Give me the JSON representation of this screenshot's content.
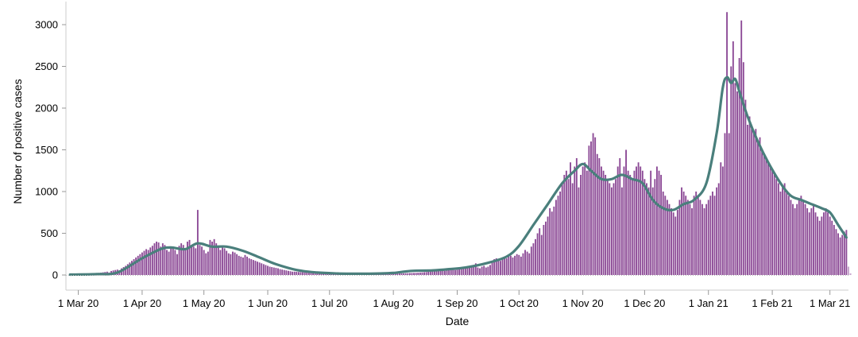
{
  "chart_data": {
    "type": "bar",
    "xlabel": "Date",
    "ylabel": "Number of positive cases",
    "ylim": [
      0,
      3200
    ],
    "yticks": [
      0,
      500,
      1000,
      1500,
      2000,
      2500,
      3000
    ],
    "x_range": [
      "2020-02-24",
      "2021-03-10"
    ],
    "xticks": [
      {
        "date": "2020-03-01",
        "label": "1 Mar 20"
      },
      {
        "date": "2020-04-01",
        "label": "1 Apr 20"
      },
      {
        "date": "2020-05-01",
        "label": "1 May 20"
      },
      {
        "date": "2020-06-01",
        "label": "1 Jun 20"
      },
      {
        "date": "2020-07-01",
        "label": "1 Jul 20"
      },
      {
        "date": "2020-08-01",
        "label": "1 Aug 20"
      },
      {
        "date": "2020-09-01",
        "label": "1 Sep 20"
      },
      {
        "date": "2020-10-01",
        "label": "1 Oct 20"
      },
      {
        "date": "2020-11-01",
        "label": "1 Nov 20"
      },
      {
        "date": "2020-12-01",
        "label": "1 Dec 20"
      },
      {
        "date": "2021-01-01",
        "label": "1 Jan 21"
      },
      {
        "date": "2021-02-01",
        "label": "1 Feb 21"
      },
      {
        "date": "2021-03-01",
        "label": "1 Mar 21"
      }
    ],
    "grid": false,
    "colors": {
      "bars": "#8c4a96",
      "incomplete_bars": "#c7a3cc",
      "trend_line": "#4a7f7c"
    },
    "series": [
      {
        "type": "bar",
        "start_date": "2020-03-01",
        "values": [
          5,
          4,
          6,
          8,
          10,
          12,
          15,
          17,
          19,
          22,
          25,
          28,
          32,
          36,
          40,
          30,
          48,
          55,
          60,
          65,
          58,
          80,
          95,
          110,
          130,
          150,
          170,
          190,
          210,
          230,
          250,
          270,
          290,
          310,
          300,
          330,
          350,
          380,
          400,
          390,
          340,
          380,
          360,
          300,
          280,
          330,
          320,
          300,
          250,
          350,
          380,
          360,
          320,
          400,
          420,
          360,
          340,
          320,
          780,
          360,
          340,
          300,
          260,
          280,
          420,
          400,
          430,
          380,
          350,
          300,
          340,
          320,
          290,
          260,
          250,
          280,
          270,
          250,
          230,
          220,
          210,
          240,
          220,
          200,
          190,
          180,
          170,
          160,
          150,
          140,
          130,
          120,
          110,
          100,
          95,
          90,
          85,
          80,
          70,
          65,
          60,
          55,
          50,
          45,
          40,
          40,
          38,
          36,
          35,
          34,
          33,
          32,
          31,
          30,
          30,
          29,
          28,
          28,
          27,
          26,
          26,
          25,
          25,
          24,
          24,
          23,
          23,
          22,
          22,
          21,
          21,
          20,
          20,
          20,
          19,
          19,
          18,
          18,
          18,
          17,
          17,
          17,
          16,
          16,
          16,
          16,
          16,
          15,
          15,
          15,
          15,
          15,
          16,
          16,
          17,
          17,
          18,
          19,
          20,
          21,
          22,
          23,
          24,
          25,
          26,
          28,
          30,
          32,
          34,
          36,
          40,
          45,
          50,
          60,
          70,
          65,
          55,
          60,
          50,
          55,
          60,
          65,
          70,
          60,
          65,
          70,
          75,
          80,
          85,
          90,
          95,
          100,
          110,
          140,
          90,
          80,
          100,
          110,
          90,
          100,
          120,
          150,
          190,
          200,
          180,
          170,
          190,
          210,
          200,
          220,
          230,
          210,
          230,
          250,
          240,
          220,
          260,
          300,
          280,
          260,
          340,
          380,
          430,
          500,
          560,
          480,
          600,
          640,
          700,
          800,
          760,
          820,
          900,
          950,
          1000,
          1100,
          1200,
          1250,
          1150,
          1350,
          1100,
          1300,
          1400,
          1050,
          1200,
          1300,
          1350,
          1250,
          1550,
          1600,
          1700,
          1650,
          1450,
          1400,
          1300,
          1250,
          1200,
          1150,
          1100,
          1050,
          1100,
          1150,
          1300,
          1400,
          1050,
          1300,
          1500,
          1250,
          1200,
          1150,
          1250,
          1300,
          1350,
          1300,
          1250,
          1150,
          1100,
          1050,
          1250,
          1050,
          1150,
          1300,
          1250,
          1200,
          1000,
          950,
          900,
          850,
          800,
          750,
          700,
          780,
          900,
          1050,
          1000,
          950,
          900,
          850,
          800,
          950,
          1000,
          950,
          900,
          850,
          800,
          850,
          900,
          950,
          1000,
          950,
          1050,
          1100,
          1350,
          1300,
          1700,
          3150,
          1700,
          2500,
          2800,
          2300,
          2200,
          2600,
          3050,
          2550,
          2100,
          1800,
          1900,
          1750,
          1700,
          1750,
          1600,
          1650,
          1500,
          1450,
          1400,
          1350,
          1300,
          1250,
          1200,
          1150,
          1100,
          1000,
          1050,
          1100,
          1000,
          950,
          900,
          850,
          800,
          850,
          900,
          950,
          900,
          850,
          800,
          750,
          800,
          850,
          750,
          700,
          650,
          700,
          750,
          800,
          750,
          700,
          650,
          600,
          550,
          500,
          450,
          480,
          520,
          540
        ],
        "incomplete_values": [
          100,
          20
        ]
      },
      {
        "type": "line",
        "anchors": [
          [
            "2020-02-26",
            5
          ],
          [
            "2020-03-10",
            10
          ],
          [
            "2020-03-20",
            30
          ],
          [
            "2020-04-01",
            200
          ],
          [
            "2020-04-10",
            310
          ],
          [
            "2020-04-15",
            330
          ],
          [
            "2020-04-22",
            310
          ],
          [
            "2020-04-28",
            380
          ],
          [
            "2020-05-05",
            340
          ],
          [
            "2020-05-12",
            340
          ],
          [
            "2020-05-20",
            290
          ],
          [
            "2020-05-28",
            210
          ],
          [
            "2020-06-05",
            130
          ],
          [
            "2020-06-15",
            60
          ],
          [
            "2020-06-25",
            30
          ],
          [
            "2020-07-05",
            18
          ],
          [
            "2020-07-15",
            15
          ],
          [
            "2020-07-25",
            18
          ],
          [
            "2020-08-01",
            25
          ],
          [
            "2020-08-10",
            50
          ],
          [
            "2020-08-20",
            55
          ],
          [
            "2020-08-28",
            70
          ],
          [
            "2020-09-05",
            90
          ],
          [
            "2020-09-15",
            140
          ],
          [
            "2020-09-25",
            220
          ],
          [
            "2020-10-01",
            350
          ],
          [
            "2020-10-08",
            600
          ],
          [
            "2020-10-15",
            850
          ],
          [
            "2020-10-22",
            1100
          ],
          [
            "2020-10-28",
            1250
          ],
          [
            "2020-11-01",
            1330
          ],
          [
            "2020-11-05",
            1250
          ],
          [
            "2020-11-10",
            1150
          ],
          [
            "2020-11-15",
            1150
          ],
          [
            "2020-11-20",
            1200
          ],
          [
            "2020-11-25",
            1150
          ],
          [
            "2020-11-30",
            1100
          ],
          [
            "2020-12-05",
            900
          ],
          [
            "2020-12-10",
            800
          ],
          [
            "2020-12-15",
            780
          ],
          [
            "2020-12-20",
            850
          ],
          [
            "2020-12-25",
            900
          ],
          [
            "2020-12-31",
            1100
          ],
          [
            "2021-01-05",
            1700
          ],
          [
            "2021-01-08",
            2250
          ],
          [
            "2021-01-10",
            2370
          ],
          [
            "2021-01-12",
            2300
          ],
          [
            "2021-01-14",
            2350
          ],
          [
            "2021-01-16",
            2200
          ],
          [
            "2021-01-20",
            1900
          ],
          [
            "2021-01-25",
            1600
          ],
          [
            "2021-01-30",
            1350
          ],
          [
            "2021-02-05",
            1100
          ],
          [
            "2021-02-10",
            950
          ],
          [
            "2021-02-15",
            900
          ],
          [
            "2021-02-20",
            850
          ],
          [
            "2021-02-25",
            800
          ],
          [
            "2021-03-01",
            750
          ],
          [
            "2021-03-05",
            600
          ],
          [
            "2021-03-09",
            450
          ]
        ]
      }
    ]
  }
}
